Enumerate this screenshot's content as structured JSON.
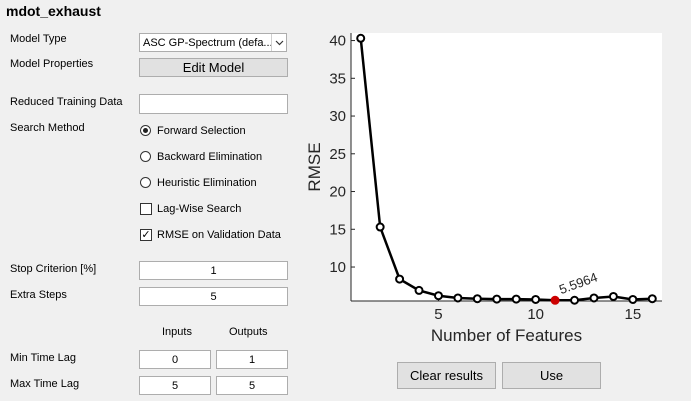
{
  "panel_title": "mdot_exhaust",
  "labels": {
    "model_type": "Model Type",
    "model_properties": "Model Properties",
    "reduced_training_data": "Reduced Training Data",
    "search_method": "Search Method",
    "stop_criterion": "Stop Criterion [%]",
    "extra_steps": "Extra Steps",
    "inputs": "Inputs",
    "outputs": "Outputs",
    "min_time_lag": "Min Time Lag",
    "max_time_lag": "Max Time Lag"
  },
  "model_type_value": "ASC GP-Spectrum (defa...",
  "edit_model_label": "Edit Model",
  "reduced_training_data_value": "",
  "search_options": {
    "forward": "Forward Selection",
    "backward": "Backward Elimination",
    "heuristic": "Heuristic Elimination",
    "selected": "forward"
  },
  "checkboxes": {
    "lag_wise": {
      "label": "Lag-Wise Search",
      "checked": false
    },
    "rmse_validation": {
      "label": "RMSE on Validation Data",
      "checked": true
    }
  },
  "stop_criterion_value": "1",
  "extra_steps_value": "5",
  "min_time_lag": {
    "inputs": "0",
    "outputs": "1"
  },
  "max_time_lag": {
    "inputs": "5",
    "outputs": "5"
  },
  "buttons": {
    "clear_results": "Clear results",
    "use": "Use"
  },
  "check_mark": "✓",
  "dropdown_icon": "chevron-down-icon",
  "chart_data": {
    "type": "line",
    "x": [
      1,
      2,
      3,
      4,
      5,
      6,
      7,
      8,
      9,
      10,
      11,
      12,
      13,
      14,
      15,
      16
    ],
    "values": [
      40.3,
      15.3,
      8.4,
      6.9,
      6.2,
      5.9,
      5.8,
      5.75,
      5.75,
      5.7,
      5.5964,
      5.6,
      5.9,
      6.1,
      5.7,
      5.8
    ],
    "selected_index": 10,
    "selected_label": "5.5964",
    "xlabel": "Number of Features",
    "ylabel": "RMSE",
    "xlim": [
      0.5,
      16.5
    ],
    "ylim": [
      5.5,
      41
    ],
    "xticks": [
      5,
      10,
      15
    ],
    "yticks": [
      10,
      15,
      20,
      25,
      30,
      35,
      40
    ],
    "line_color": "#000000",
    "marker_color": "#000000",
    "selected_color": "#cc0000",
    "grid": false
  }
}
